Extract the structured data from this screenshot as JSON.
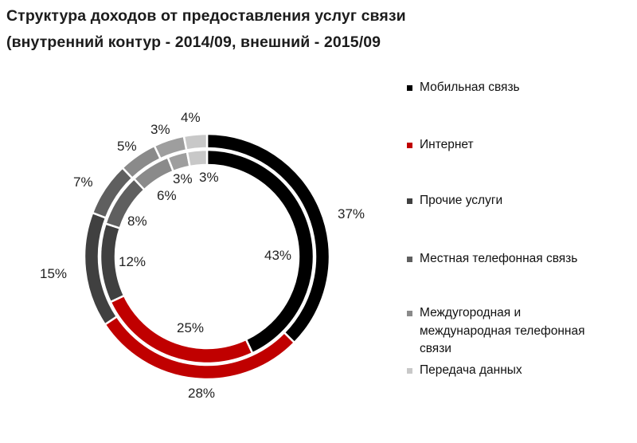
{
  "title": {
    "line1": "Структура  доходов от предоставления  услуг связи",
    "line2": "(внутренний  контур - 2014/09, внешний - 2015/09"
  },
  "legend": [
    {
      "label": "Мобильная связь",
      "color": "#000000"
    },
    {
      "label": "Интернет",
      "color": "#c00000"
    },
    {
      "label": "Прочие услуги",
      "color": "#404040"
    },
    {
      "label": "Местная телефонная связь",
      "color": "#5f5f5f"
    },
    {
      "label": "Междугородная и\nмеждународная телефонная\nсвязи",
      "color": "#8a8a8a"
    },
    {
      "label": "Передача данных",
      "color": "#c8c8c8"
    }
  ],
  "chart_data": {
    "type": "donut",
    "title": "Структура  доходов от предоставления  услуг связи (внутренний  контур - 2014/09, внешний - 2015/09",
    "categories": [
      "Мобильная связь",
      "Интернет",
      "Прочие услуги",
      "Местная телефонная связь",
      "Междугородная и международная телефонная связи",
      "Передача данных"
    ],
    "colors": [
      "#000000",
      "#c00000",
      "#404040",
      "#5f5f5f",
      "#8a8a8a",
      "#c8c8c8"
    ],
    "series": [
      {
        "name": "2014/09 (внутренний контур)",
        "ring": "inner",
        "values": [
          43,
          25,
          12,
          8,
          6,
          3
        ],
        "extra_label": "3%"
      },
      {
        "name": "2015/09 (внешний контур)",
        "ring": "outer",
        "values": [
          37,
          28,
          15,
          7,
          5,
          3
        ],
        "extra_label": "4%"
      }
    ],
    "inner_labels": [
      "43%",
      "25%",
      "12%",
      "8%",
      "6%",
      "3%",
      "3%"
    ],
    "outer_labels": [
      "37%",
      "28%",
      "15%",
      "7%",
      "5%",
      "3%",
      "4%"
    ],
    "legend_position": "right",
    "unit": "%"
  }
}
